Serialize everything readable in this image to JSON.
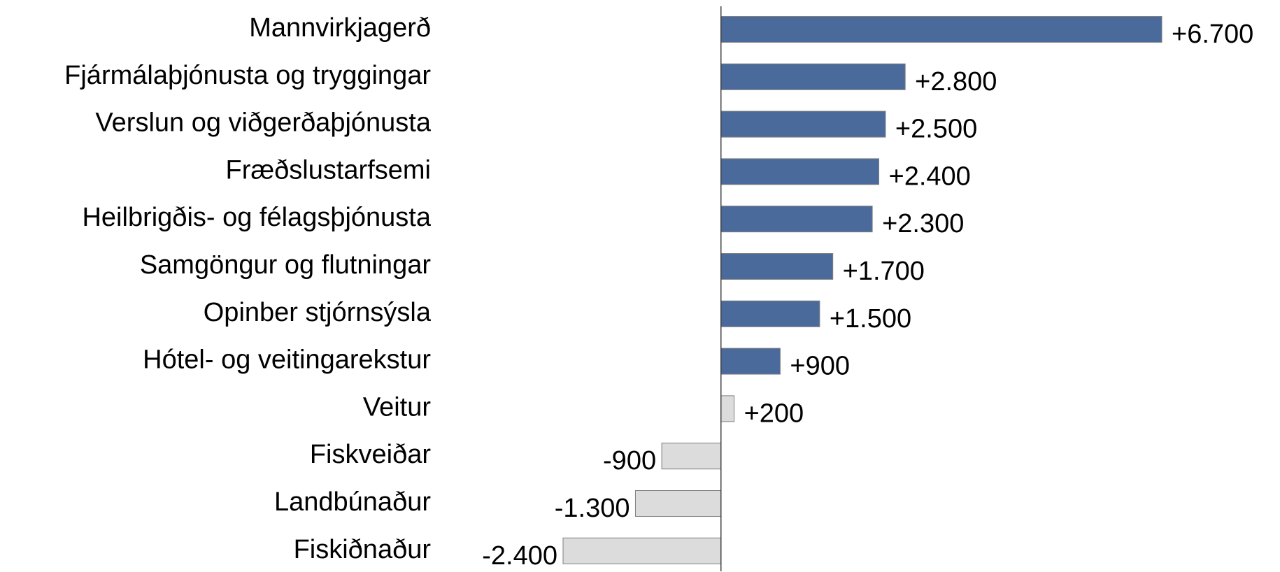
{
  "chart_data": {
    "type": "hbar",
    "categories": [
      "Mannvirkjagerð",
      "Fjármálaþjónusta og tryggingar",
      "Verslun og viðgerðaþjónusta",
      "Fræðslustarfsemi",
      "Heilbrigðis- og félagsþjónusta",
      "Samgöngur og flutningar",
      "Opinber stjórnsýsla",
      "Hótel- og veitingarekstur",
      "Veitur",
      "Fiskveiðar",
      "Landbúnaður",
      "Fiskiðnaður"
    ],
    "values": [
      6700,
      2800,
      2500,
      2400,
      2300,
      1700,
      1500,
      900,
      200,
      -900,
      -1300,
      -2400
    ],
    "value_labels": [
      "+6.700",
      "+2.800",
      "+2.500",
      "+2.400",
      "+2.300",
      "+1.700",
      "+1.500",
      "+900",
      "+200",
      "-900",
      "-1.300",
      "-2.400"
    ],
    "colors": [
      "#4a6a9c",
      "#4a6a9c",
      "#4a6a9c",
      "#4a6a9c",
      "#4a6a9c",
      "#4a6a9c",
      "#4a6a9c",
      "#4a6a9c",
      "#dcdcdc",
      "#dcdcdc",
      "#dcdcdc",
      "#dcdcdc"
    ],
    "xlim": [
      -2400,
      6700
    ]
  }
}
